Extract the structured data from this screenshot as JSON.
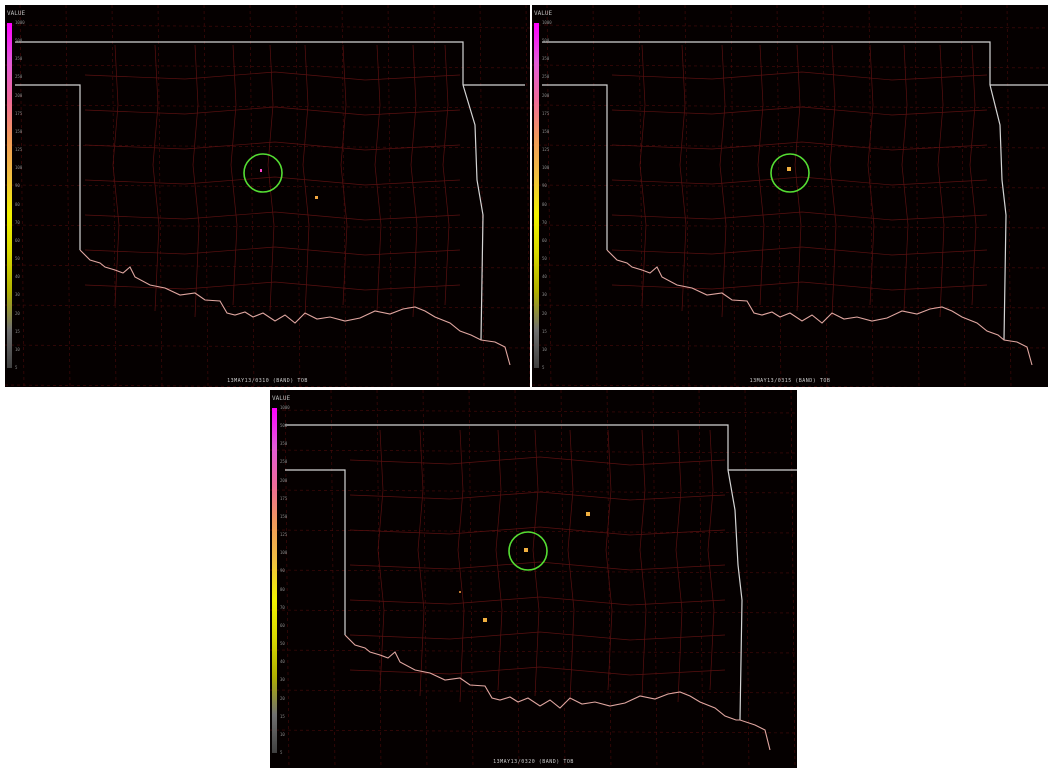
{
  "panels": [
    {
      "caption": "13MAY13/0310 (BAND) TOB"
    },
    {
      "caption": "13MAY13/0315 (BAND) TOB"
    },
    {
      "caption": "13MAY13/0320 (BAND) TOB"
    }
  ],
  "colorbar": {
    "title": "VALUE",
    "ticks": [
      "1000",
      "500",
      "350",
      "250",
      "200",
      "175",
      "150",
      "125",
      "100",
      "90",
      "80",
      "70",
      "60",
      "50",
      "40",
      "30",
      "20",
      "15",
      "10",
      "5"
    ],
    "colors": [
      "#ff00ff",
      "#e35ad9",
      "#f06a9a",
      "#f29a5a",
      "#f2c040",
      "#f2f200",
      "#d9d900",
      "#b0b000",
      "#707070",
      "#404040"
    ]
  },
  "colors": {
    "panel_bg": "#050000",
    "state_border": "#d4d4d4",
    "river": "#e0a6a0",
    "county_lines": "#5a1010",
    "grid": "#4a0a0a",
    "highlight_circle": "#55dd33"
  },
  "markers": {
    "panel1": [
      "magenta-dot",
      "orange-dot"
    ],
    "panel2": [
      "orange-dot"
    ],
    "panel3": [
      "orange-dot",
      "orange-dot",
      "orange-dot",
      "orange-dot"
    ]
  }
}
